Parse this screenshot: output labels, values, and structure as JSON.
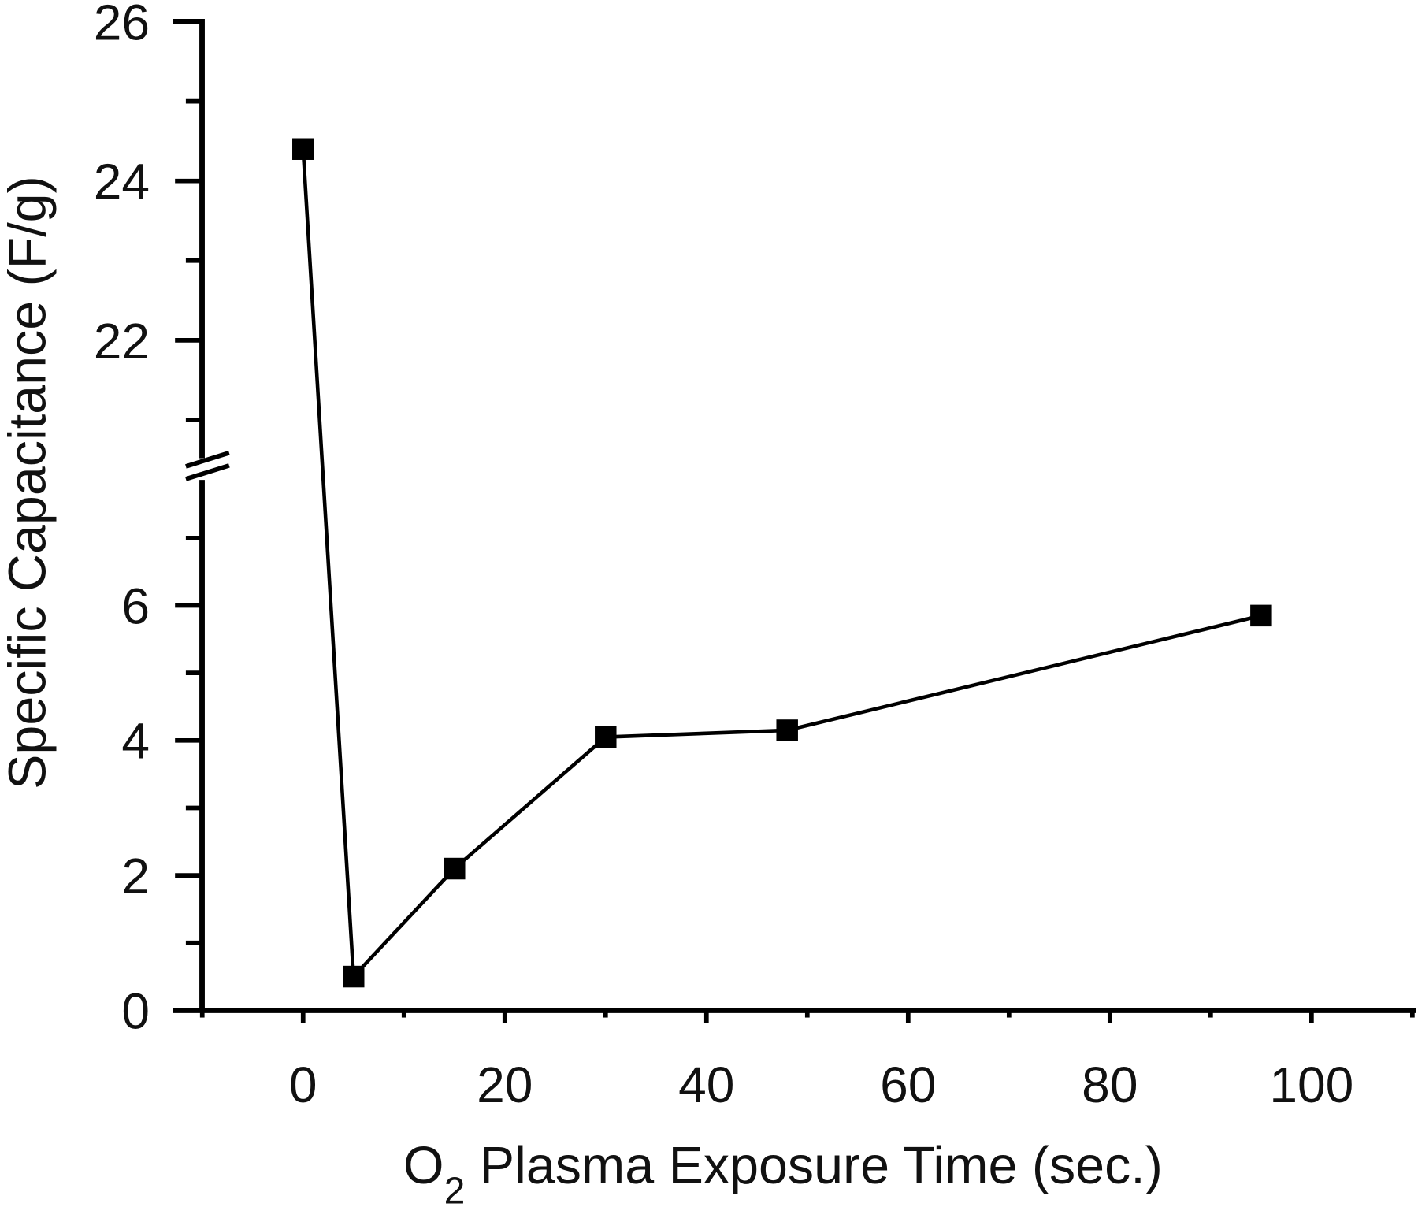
{
  "chart_data": {
    "type": "line",
    "title": "",
    "xlabel_main": "O",
    "xlabel_sub": "2",
    "xlabel_rest": " Plasma Exposure Time (sec.)",
    "xlabel": "O2 Plasma Exposure Time (sec.)",
    "ylabel": "Specific Capacitance (F/g)",
    "x": [
      0,
      5,
      15,
      30,
      48,
      95
    ],
    "series": [
      {
        "name": "Specific Capacitance",
        "values": [
          24.4,
          0.5,
          2.1,
          4.05,
          4.15,
          5.85
        ],
        "marker": "square",
        "color": "#000000"
      }
    ],
    "xlim": [
      -10,
      110
    ],
    "ylim_lower": [
      0,
      8
    ],
    "ylim_upper": [
      20.5,
      26
    ],
    "y_axis_break": true,
    "x_ticks": [
      "0",
      "20",
      "40",
      "60",
      "80",
      "100"
    ],
    "y_ticks_lower": [
      "0",
      "2",
      "4",
      "6"
    ],
    "y_ticks_upper": [
      "22",
      "24",
      "26"
    ],
    "grid": false,
    "legend": null
  }
}
